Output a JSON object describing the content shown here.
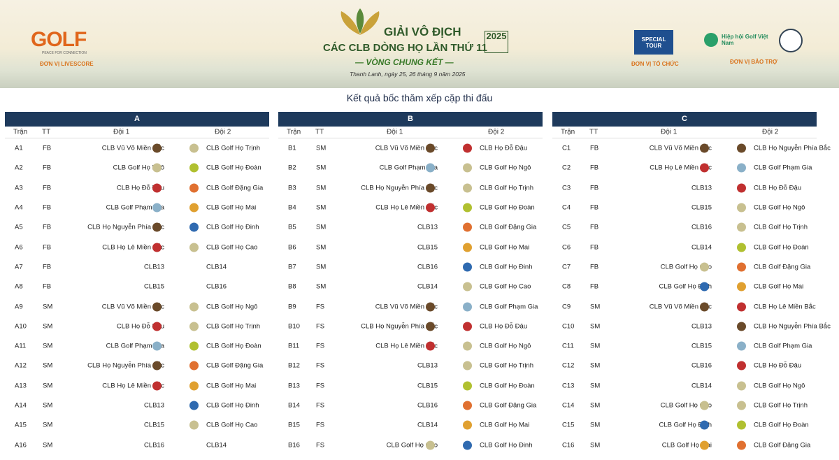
{
  "header": {
    "logo_left": "GOLF",
    "logo_left_tagline": "PEACE FOR CONNECTION",
    "livescore_label": "ĐƠN VỊ LIVESCORE",
    "title_line1": "GIẢI VÔ ĐỊCH",
    "title_line2": "CÁC CLB DÒNG HỌ LẦN THỨ 11",
    "year": "2025",
    "round": "— VÒNG CHUNG KẾT —",
    "date": "Thanh Lanh, ngày 25, 26 tháng 9 năm 2025",
    "organizer_logo": "SPECIAL TOUR",
    "organizer_label": "ĐƠN VỊ TỔ CHỨC",
    "sponsor_logo": "Hiệp hội Golf Việt Nam",
    "sponsor_label": "ĐƠN VỊ BẢO TRỢ"
  },
  "subtitle": "Kết quả bốc thăm xếp cặp thi đấu",
  "columns": [
    "Trận",
    "TT",
    "Đội 1",
    "Đội 2"
  ],
  "tables": [
    {
      "group": "A",
      "rows": [
        [
          "A1",
          "FB",
          "CLB Vũ Võ Miền Bắc",
          "CLB Golf Họ Trịnh"
        ],
        [
          "A2",
          "FB",
          "CLB Golf Họ Ngô",
          "CLB Golf Họ Đoàn"
        ],
        [
          "A3",
          "FB",
          "CLB Họ Đỗ Đậu",
          "CLB Golf Đặng Gia"
        ],
        [
          "A4",
          "FB",
          "CLB Golf Phạm Gia",
          "CLB Golf Họ Mai"
        ],
        [
          "A5",
          "FB",
          "CLB Họ Nguyễn Phía Bắc",
          "CLB Golf Họ Đinh"
        ],
        [
          "A6",
          "FB",
          "CLB Họ Lê Miền Bắc",
          "CLB Golf Họ Cao"
        ],
        [
          "A7",
          "FB",
          "CLB13",
          "CLB14"
        ],
        [
          "A8",
          "FB",
          "CLB15",
          "CLB16"
        ],
        [
          "A9",
          "SM",
          "CLB Vũ Võ Miền Bắc",
          "CLB Golf Họ Ngô"
        ],
        [
          "A10",
          "SM",
          "CLB Họ Đỗ Đậu",
          "CLB Golf Họ Trịnh"
        ],
        [
          "A11",
          "SM",
          "CLB Golf Phạm Gia",
          "CLB Golf Họ Đoàn"
        ],
        [
          "A12",
          "SM",
          "CLB Họ Nguyễn Phía Bắc",
          "CLB Golf Đặng Gia"
        ],
        [
          "A13",
          "SM",
          "CLB Họ Lê Miền Bắc",
          "CLB Golf Họ Mai"
        ],
        [
          "A14",
          "SM",
          "CLB13",
          "CLB Golf Họ Đinh"
        ],
        [
          "A15",
          "SM",
          "CLB15",
          "CLB Golf Họ Cao"
        ],
        [
          "A16",
          "SM",
          "CLB16",
          "CLB14"
        ]
      ]
    },
    {
      "group": "B",
      "rows": [
        [
          "B1",
          "SM",
          "CLB Vũ Võ Miền Bắc",
          "CLB Họ Đỗ Đậu"
        ],
        [
          "B2",
          "SM",
          "CLB Golf Phạm Gia",
          "CLB Golf Họ Ngô"
        ],
        [
          "B3",
          "SM",
          "CLB Họ Nguyễn Phía Bắc",
          "CLB Golf Họ Trịnh"
        ],
        [
          "B4",
          "SM",
          "CLB Họ Lê Miền Bắc",
          "CLB Golf Họ Đoàn"
        ],
        [
          "B5",
          "SM",
          "CLB13",
          "CLB Golf Đặng Gia"
        ],
        [
          "B6",
          "SM",
          "CLB15",
          "CLB Golf Họ Mai"
        ],
        [
          "B7",
          "SM",
          "CLB16",
          "CLB Golf Họ Đinh"
        ],
        [
          "B8",
          "SM",
          "CLB14",
          "CLB Golf Họ Cao"
        ],
        [
          "B9",
          "FS",
          "CLB Vũ Võ Miền Bắc",
          "CLB Golf Phạm Gia"
        ],
        [
          "B10",
          "FS",
          "CLB Họ Nguyễn Phía Bắc",
          "CLB Họ Đỗ Đậu"
        ],
        [
          "B11",
          "FS",
          "CLB Họ Lê Miền Bắc",
          "CLB Golf Họ Ngô"
        ],
        [
          "B12",
          "FS",
          "CLB13",
          "CLB Golf Họ Trịnh"
        ],
        [
          "B13",
          "FS",
          "CLB15",
          "CLB Golf Họ Đoàn"
        ],
        [
          "B14",
          "FS",
          "CLB16",
          "CLB Golf Đặng Gia"
        ],
        [
          "B15",
          "FS",
          "CLB14",
          "CLB Golf Họ Mai"
        ],
        [
          "B16",
          "FS",
          "CLB Golf Họ Cao",
          "CLB Golf Họ Đinh"
        ]
      ]
    },
    {
      "group": "C",
      "rows": [
        [
          "C1",
          "FB",
          "CLB Vũ Võ Miền Bắc",
          "CLB Họ Nguyễn Phía Bắc"
        ],
        [
          "C2",
          "FB",
          "CLB Họ Lê Miền Bắc",
          "CLB Golf Phạm Gia"
        ],
        [
          "C3",
          "FB",
          "CLB13",
          "CLB Họ Đỗ Đậu"
        ],
        [
          "C4",
          "FB",
          "CLB15",
          "CLB Golf Họ Ngô"
        ],
        [
          "C5",
          "FB",
          "CLB16",
          "CLB Golf Họ Trịnh"
        ],
        [
          "C6",
          "FB",
          "CLB14",
          "CLB Golf Họ Đoàn"
        ],
        [
          "C7",
          "FB",
          "CLB Golf Họ Cao",
          "CLB Golf Đặng Gia"
        ],
        [
          "C8",
          "FB",
          "CLB Golf Họ Đinh",
          "CLB Golf Họ Mai"
        ],
        [
          "C9",
          "SM",
          "CLB Vũ Võ Miền Bắc",
          "CLB Họ Lê Miền Bắc"
        ],
        [
          "C10",
          "SM",
          "CLB13",
          "CLB Họ Nguyễn Phía Bắc"
        ],
        [
          "C11",
          "SM",
          "CLB15",
          "CLB Golf Phạm Gia"
        ],
        [
          "C12",
          "SM",
          "CLB16",
          "CLB Họ Đỗ Đậu"
        ],
        [
          "C13",
          "SM",
          "CLB14",
          "CLB Golf Họ Ngô"
        ],
        [
          "C14",
          "SM",
          "CLB Golf Họ Cao",
          "CLB Golf Họ Trịnh"
        ],
        [
          "C15",
          "SM",
          "CLB Golf Họ Đinh",
          "CLB Golf Họ Đoàn"
        ],
        [
          "C16",
          "SM",
          "CLB Golf Họ Mai",
          "CLB Golf Đặng Gia"
        ]
      ]
    }
  ]
}
